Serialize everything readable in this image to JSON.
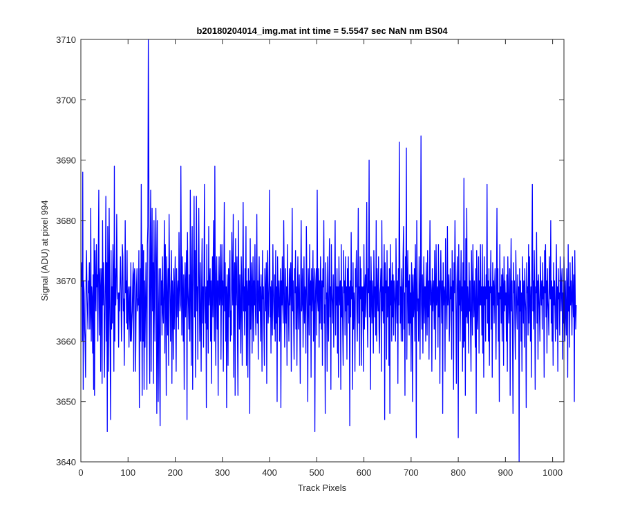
{
  "figure": {
    "title": "b20180204014_img.mat int time = 5.5547 sec  NaN nm BS04",
    "xlabel": "Track Pixels",
    "ylabel": "Signal (ADU) at pixel 994"
  },
  "colors": {
    "series": "#0000ff",
    "axes": "#262626",
    "background": "#ffffff"
  },
  "chart_data": {
    "type": "line",
    "title": "b20180204014_img.mat int time = 5.5547 sec  NaN nm BS04",
    "xlabel": "Track Pixels",
    "ylabel": "Signal (ADU) at pixel 994",
    "xlim": [
      0,
      1024
    ],
    "ylim": [
      3640,
      3710
    ],
    "xticks": [
      0,
      100,
      200,
      300,
      400,
      500,
      600,
      700,
      800,
      900,
      1000
    ],
    "yticks": [
      3640,
      3650,
      3660,
      3670,
      3680,
      3690,
      3700,
      3710
    ],
    "grid": false,
    "legend": "none",
    "series_name": "",
    "x_start": 1,
    "x_step": 1,
    "series_note": "approximate trace read from the figure (one value per track pixel)",
    "y": [
      3669,
      3673,
      3660,
      3688,
      3652,
      3670,
      3668,
      3662,
      3660,
      3654,
      3670,
      3675,
      3668,
      3665,
      3662,
      3670,
      3668,
      3673,
      3662,
      3665,
      3682,
      3660,
      3669,
      3667,
      3658,
      3671,
      3652,
      3677,
      3651,
      3675,
      3669,
      3665,
      3676,
      3669,
      3671,
      3660,
      3674,
      3685,
      3661,
      3670,
      3672,
      3655,
      3669,
      3672,
      3653,
      3680,
      3666,
      3673,
      3669,
      3654,
      3663,
      3670,
      3684,
      3660,
      3673,
      3645,
      3679,
      3671,
      3655,
      3682,
      3668,
      3660,
      3647,
      3675,
      3662,
      3669,
      3663,
      3676,
      3670,
      3655,
      3689,
      3660,
      3672,
      3666,
      3669,
      3681,
      3671,
      3667,
      3668,
      3659,
      3668,
      3665,
      3670,
      3674,
      3669,
      3660,
      3665,
      3676,
      3674,
      3665,
      3667,
      3656,
      3666,
      3680,
      3668,
      3670,
      3663,
      3675,
      3662,
      3668,
      3669,
      3659,
      3666,
      3669,
      3660,
      3673,
      3660,
      3663,
      3665,
      3670,
      3673,
      3655,
      3671,
      3672,
      3669,
      3655,
      3664,
      3669,
      3672,
      3665,
      3667,
      3666,
      3675,
      3649,
      3666,
      3672,
      3660,
      3686,
      3669,
      3651,
      3676,
      3660,
      3675,
      3652,
      3670,
      3659,
      3666,
      3673,
      3665,
      3652,
      3676,
      3679,
      3710,
      3692,
      3663,
      3653,
      3675,
      3685,
      3655,
      3671,
      3682,
      3665,
      3673,
      3653,
      3680,
      3669,
      3660,
      3674,
      3682,
      3672,
      3648,
      3680,
      3660,
      3650,
      3666,
      3672,
      3655,
      3646,
      3672,
      3666,
      3670,
      3661,
      3674,
      3665,
      3663,
      3669,
      3680,
      3658,
      3676,
      3668,
      3651,
      3674,
      3666,
      3661,
      3672,
      3656,
      3681,
      3672,
      3666,
      3660,
      3669,
      3675,
      3653,
      3670,
      3667,
      3657,
      3672,
      3662,
      3669,
      3674,
      3663,
      3655,
      3672,
      3664,
      3668,
      3670,
      3662,
      3678,
      3670,
      3665,
      3666,
      3689,
      3672,
      3661,
      3674,
      3668,
      3660,
      3671,
      3652,
      3666,
      3673,
      3664,
      3669,
      3675,
      3647,
      3678,
      3669,
      3666,
      3662,
      3671,
      3660,
      3685,
      3669,
      3656,
      3672,
      3679,
      3652,
      3668,
      3673,
      3684,
      3664,
      3675,
      3654,
      3670,
      3684,
      3665,
      3669,
      3657,
      3672,
      3682,
      3668,
      3660,
      3673,
      3665,
      3655,
      3670,
      3677,
      3663,
      3669,
      3659,
      3671,
      3686,
      3666,
      3663,
      3669,
      3649,
      3676,
      3662,
      3670,
      3658,
      3679,
      3666,
      3669,
      3672,
      3660,
      3670,
      3653,
      3668,
      3674,
      3664,
      3680,
      3669,
      3660,
      3689,
      3667,
      3656,
      3671,
      3674,
      3662,
      3670,
      3651,
      3669,
      3674,
      3666,
      3668,
      3676,
      3657,
      3668,
      3676,
      3666,
      3670,
      3655,
      3669,
      3683,
      3665,
      3673,
      3660,
      3669,
      3649,
      3671,
      3667,
      3656,
      3672,
      3664,
      3670,
      3675,
      3660,
      3665,
      3661,
      3678,
      3670,
      3666,
      3681,
      3654,
      3669,
      3673,
      3651,
      3677,
      3666,
      3670,
      3674,
      3660,
      3651,
      3680,
      3668,
      3662,
      3671,
      3665,
      3658,
      3674,
      3669,
      3656,
      3670,
      3683,
      3665,
      3669,
      3661,
      3672,
      3665,
      3679,
      3656,
      3670,
      3668,
      3654,
      3672,
      3666,
      3670,
      3648,
      3677,
      3662,
      3669,
      3673,
      3658,
      3668,
      3674,
      3660,
      3670,
      3666,
      3676,
      3665,
      3661,
      3669,
      3681,
      3663,
      3670,
      3657,
      3668,
      3674,
      3665,
      3669,
      3660,
      3671,
      3666,
      3655,
      3675,
      3667,
      3669,
      3662,
      3656,
      3672,
      3668,
      3665,
      3673,
      3653,
      3670,
      3675,
      3663,
      3666,
      3670,
      3685,
      3664,
      3669,
      3658,
      3670,
      3667,
      3661,
      3676,
      3669,
      3665,
      3662,
      3671,
      3660,
      3675,
      3663,
      3669,
      3650,
      3674,
      3668,
      3664,
      3670,
      3660,
      3666,
      3672,
      3649,
      3670,
      3666,
      3674,
      3666,
      3663,
      3680,
      3670,
      3659,
      3665,
      3672,
      3663,
      3669,
      3656,
      3676,
      3668,
      3665,
      3660,
      3672,
      3666,
      3670,
      3673,
      3655,
      3669,
      3682,
      3665,
      3670,
      3663,
      3657,
      3672,
      3668,
      3675,
      3662,
      3669,
      3656,
      3668,
      3674,
      3662,
      3667,
      3671,
      3664,
      3653,
      3670,
      3680,
      3665,
      3667,
      3672,
      3659,
      3666,
      3674,
      3663,
      3669,
      3668,
      3658,
      3679,
      3670,
      3664,
      3650,
      3672,
      3668,
      3661,
      3676,
      3666,
      3670,
      3654,
      3672,
      3665,
      3668,
      3675,
      3660,
      3669,
      3672,
      3645,
      3666,
      3670,
      3672,
      3661,
      3685,
      3667,
      3665,
      3672,
      3659,
      3670,
      3663,
      3674,
      3669,
      3662,
      3670,
      3656,
      3672,
      3669,
      3680,
      3663,
      3666,
      3648,
      3673,
      3667,
      3668,
      3655,
      3674,
      3665,
      3660,
      3670,
      3677,
      3664,
      3669,
      3652,
      3676,
      3668,
      3666,
      3663,
      3671,
      3659,
      3666,
      3671,
      3680,
      3661,
      3669,
      3666,
      3672,
      3658,
      3669,
      3654,
      3674,
      3668,
      3666,
      3670,
      3652,
      3676,
      3664,
      3669,
      3662,
      3656,
      3675,
      3668,
      3670,
      3661,
      3674,
      3665,
      3669,
      3657,
      3672,
      3666,
      3674,
      3663,
      3669,
      3646,
      3670,
      3664,
      3678,
      3667,
      3669,
      3652,
      3673,
      3662,
      3668,
      3666,
      3655,
      3672,
      3669,
      3675,
      3665,
      3660,
      3670,
      3682,
      3663,
      3669,
      3656,
      3674,
      3667,
      3672,
      3656,
      3669,
      3665,
      3669,
      3655,
      3676,
      3662,
      3668,
      3671,
      3664,
      3670,
      3683,
      3665,
      3659,
      3672,
      3668,
      3690,
      3664,
      3670,
      3652,
      3674,
      3669,
      3663,
      3670,
      3666,
      3658,
      3675,
      3670,
      3664,
      3669,
      3661,
      3680,
      3660,
      3672,
      3667,
      3665,
      3674,
      3662,
      3658,
      3668,
      3669,
      3672,
      3655,
      3680,
      3665,
      3669,
      3663,
      3670,
      3676,
      3647,
      3673,
      3668,
      3670,
      3657,
      3675,
      3664,
      3669,
      3669,
      3656,
      3672,
      3648,
      3676,
      3666,
      3670,
      3660,
      3673,
      3664,
      3671,
      3661,
      3670,
      3668,
      3666,
      3660,
      3677,
      3669,
      3663,
      3670,
      3653,
      3672,
      3666,
      3693,
      3675,
      3663,
      3669,
      3660,
      3672,
      3667,
      3660,
      3674,
      3679,
      3662,
      3668,
      3651,
      3674,
      3669,
      3692,
      3657,
      3669,
      3675,
      3663,
      3670,
      3661,
      3671,
      3663,
      3668,
      3655,
      3673,
      3669,
      3650,
      3671,
      3664,
      3666,
      3672,
      3660,
      3676,
      3668,
      3644,
      3680,
      3669,
      3665,
      3667,
      3660,
      3674,
      3669,
      3657,
      3671,
      3694,
      3666,
      3662,
      3671,
      3658,
      3668,
      3674,
      3663,
      3669,
      3669,
      3660,
      3673,
      3668,
      3661,
      3675,
      3664,
      3670,
      3657,
      3669,
      3680,
      3666,
      3670,
      3668,
      3655,
      3672,
      3665,
      3668,
      3670,
      3662,
      3675,
      3669,
      3657,
      3676,
      3666,
      3668,
      3669,
      3659,
      3676,
      3664,
      3670,
      3653,
      3669,
      3675,
      3668,
      3663,
      3670,
      3648,
      3673,
      3666,
      3669,
      3668,
      3655,
      3677,
      3669,
      3665,
      3662,
      3679,
      3666,
      3668,
      3671,
      3660,
      3664,
      3672,
      3667,
      3669,
      3657,
      3675,
      3665,
      3670,
      3652,
      3673,
      3668,
      3680,
      3670,
      3664,
      3653,
      3669,
      3674,
      3668,
      3644,
      3676,
      3666,
      3670,
      3660,
      3668,
      3675,
      3665,
      3669,
      3655,
      3673,
      3659,
      3687,
      3660,
      3670,
      3651,
      3677,
      3664,
      3682,
      3663,
      3669,
      3666,
      3658,
      3673,
      3665,
      3670,
      3662,
      3655,
      3675,
      3668,
      3661,
      3676,
      3668,
      3664,
      3670,
      3666,
      3659,
      3672,
      3648,
      3675,
      3665,
      3662,
      3669,
      3674,
      3658,
      3670,
      3666,
      3676,
      3666,
      3669,
      3661,
      3676,
      3658,
      3669,
      3654,
      3674,
      3666,
      3669,
      3660,
      3671,
      3667,
      3686,
      3663,
      3670,
      3660,
      3672,
      3656,
      3669,
      3668,
      3675,
      3662,
      3669,
      3654,
      3673,
      3666,
      3670,
      3663,
      3669,
      3672,
      3664,
      3657,
      3670,
      3682,
      3666,
      3672,
      3660,
      3668,
      3650,
      3676,
      3667,
      3669,
      3663,
      3671,
      3660,
      3672,
      3669,
      3656,
      3674,
      3665,
      3670,
      3666,
      3668,
      3660,
      3671,
      3655,
      3674,
      3669,
      3663,
      3667,
      3672,
      3651,
      3669,
      3677,
      3665,
      3670,
      3660,
      3648,
      3673,
      3668,
      3670,
      3663,
      3657,
      3675,
      3669,
      3665,
      3662,
      3671,
      3666,
      3669,
      3640,
      3672,
      3665,
      3670,
      3660,
      3668,
      3655,
      3674,
      3669,
      3663,
      3670,
      3659,
      3672,
      3667,
      3665,
      3649,
      3673,
      3668,
      3669,
      3661,
      3676,
      3663,
      3674,
      3667,
      3660,
      3669,
      3654,
      3673,
      3686,
      3665,
      3670,
      3662,
      3675,
      3668,
      3652,
      3669,
      3668,
      3678,
      3663,
      3670,
      3657,
      3671,
      3668,
      3665,
      3660,
      3674,
      3669,
      3666,
      3670,
      3662,
      3673,
      3667,
      3669,
      3654,
      3675,
      3668,
      3676,
      3664,
      3670,
      3658,
      3672,
      3667,
      3665,
      3661,
      3674,
      3669,
      3667,
      3680,
      3663,
      3670,
      3660,
      3669,
      3656,
      3673,
      3666,
      3670,
      3665,
      3660,
      3669,
      3676,
      3662,
      3669,
      3655,
      3672,
      3667,
      3668,
      3661,
      3674,
      3670,
      3665,
      3670,
      3672,
      3657,
      3668,
      3663,
      3674,
      3669,
      3660,
      3670,
      3665,
      3661,
      3672,
      3669,
      3654,
      3676,
      3665,
      3669,
      3659,
      3673,
      3666,
      3670,
      3667,
      3661,
      3674,
      3668,
      3664,
      3671,
      3650,
      3675,
      3667,
      3662,
      3666
    ]
  }
}
